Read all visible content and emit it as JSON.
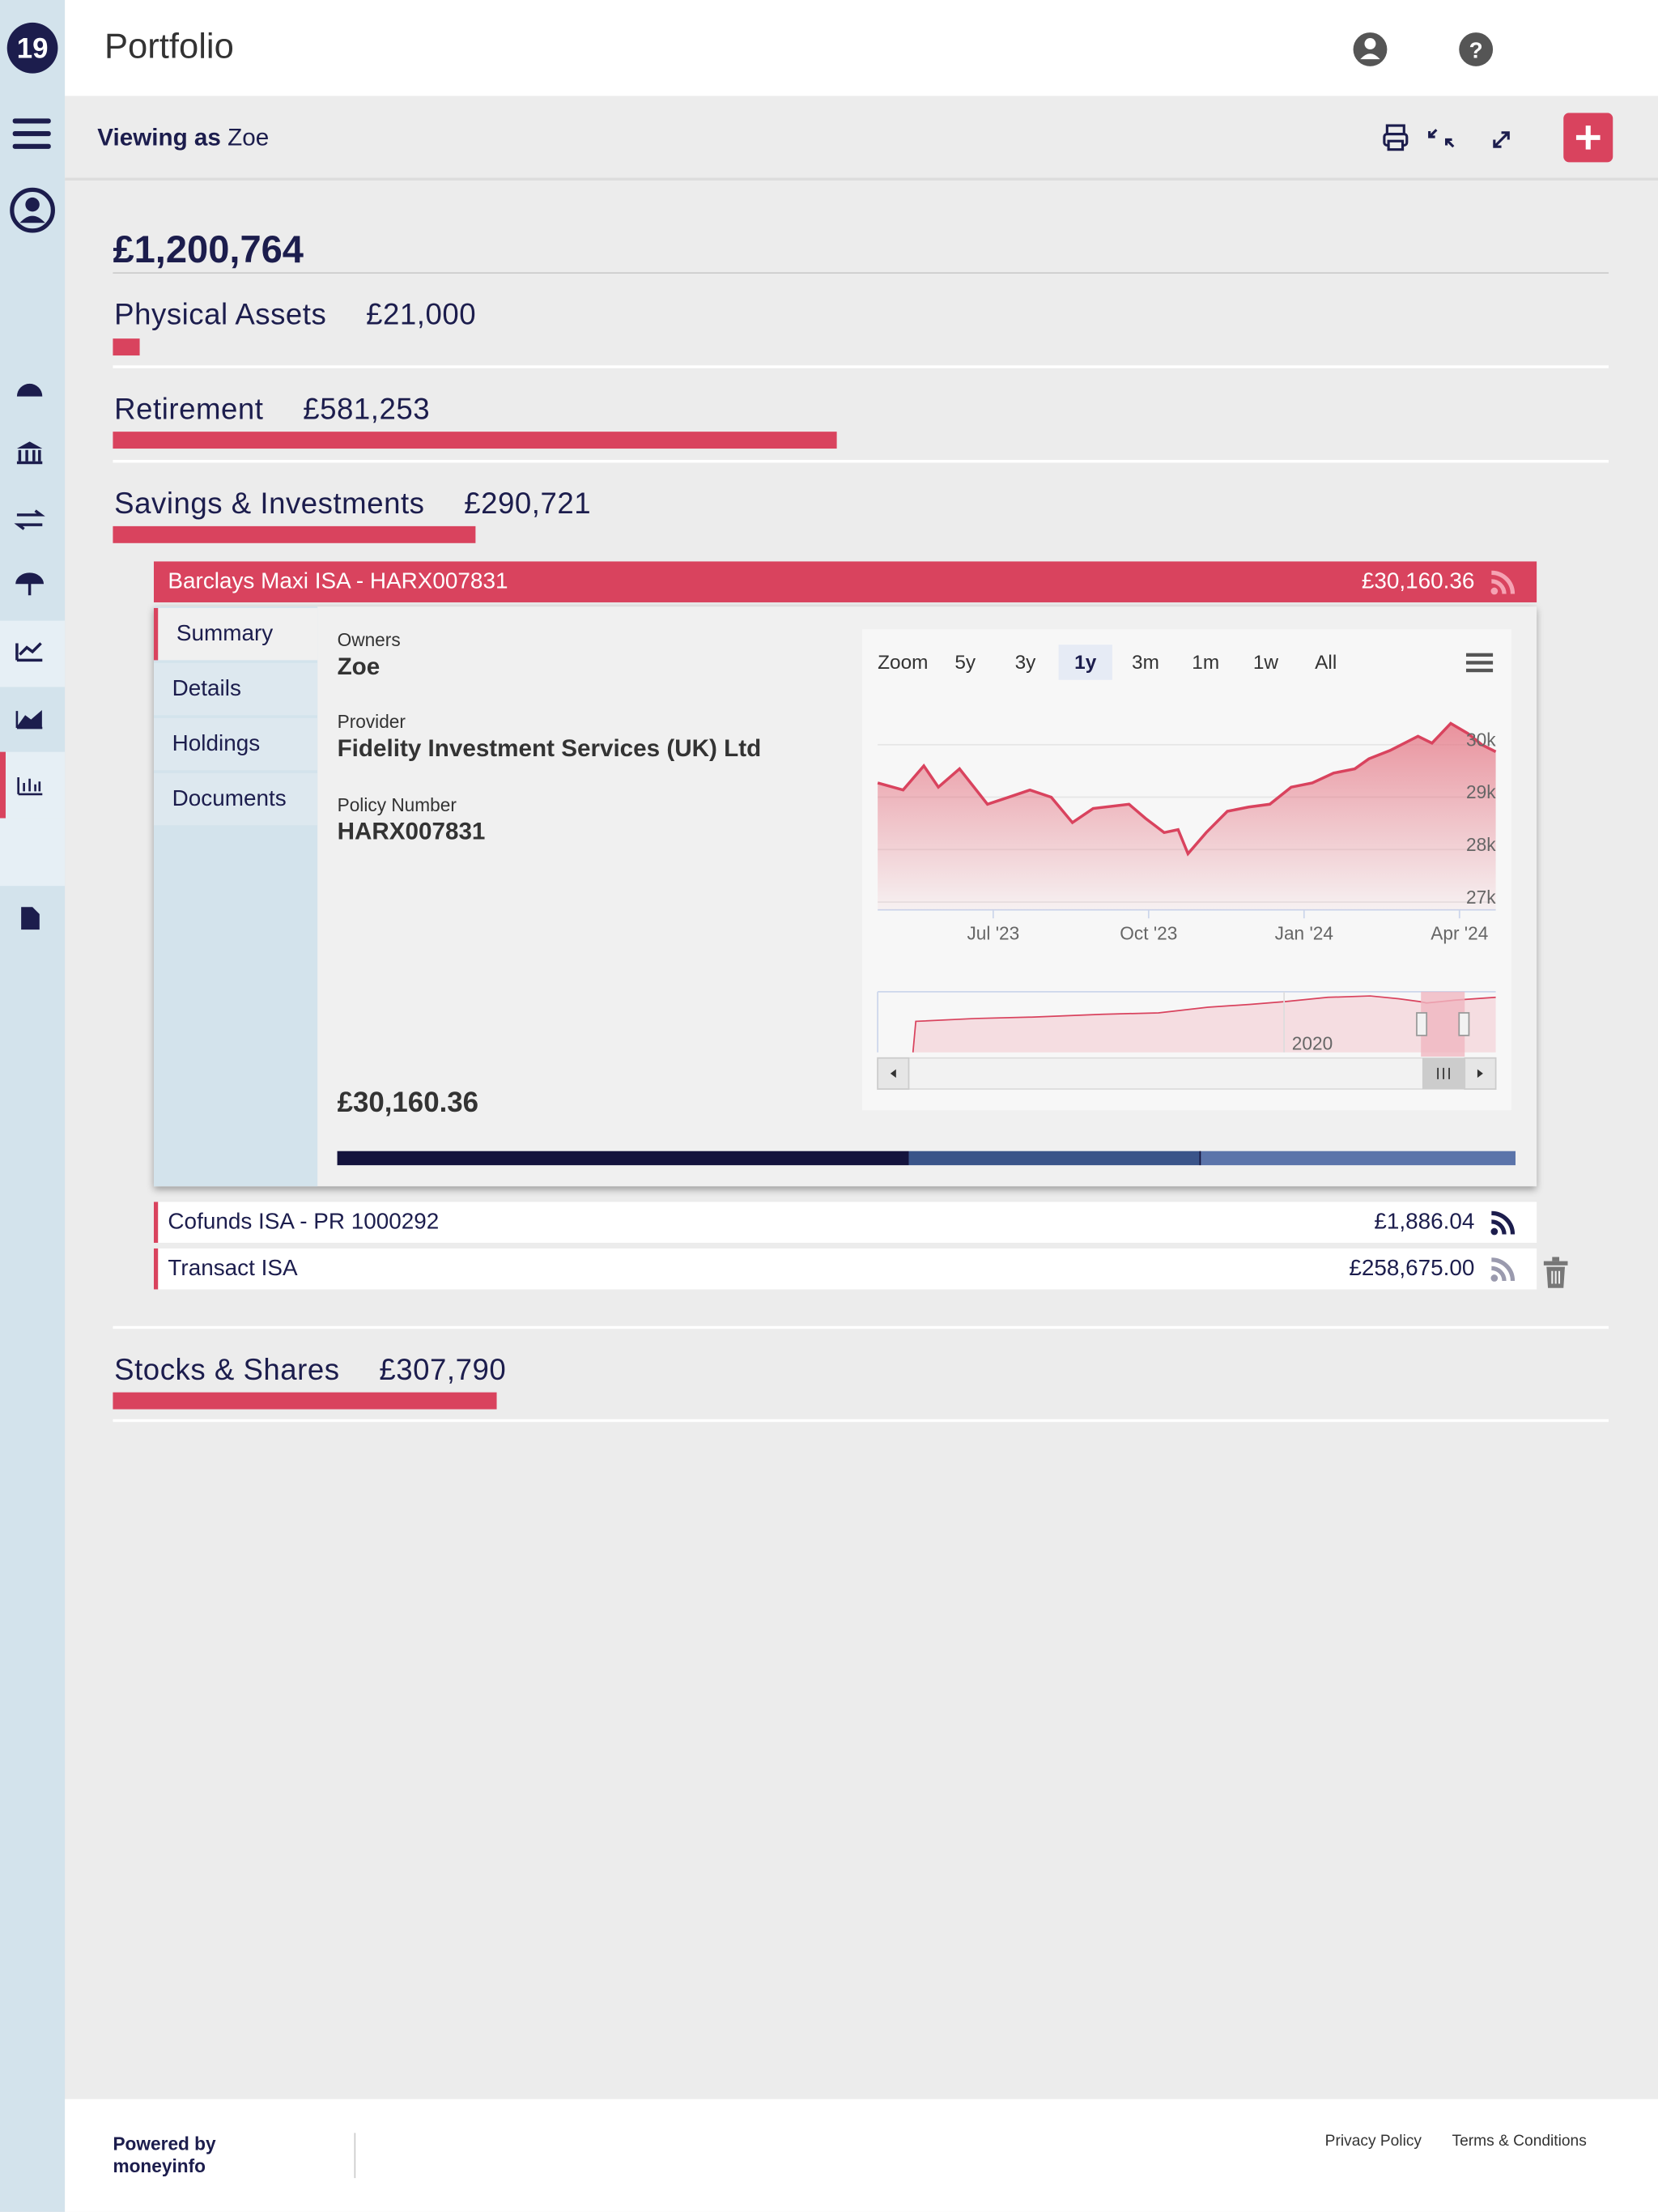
{
  "header": {
    "title": "Portfolio"
  },
  "subheader": {
    "viewing_label": "Viewing as",
    "viewing_name": "Zoe"
  },
  "total": {
    "value": 1200764,
    "value_label": "£1,200,764"
  },
  "categories": [
    {
      "name": "Physical Assets",
      "value": 21000,
      "value_label": "£21,000"
    },
    {
      "name": "Retirement",
      "value": 581253,
      "value_label": "£581,253"
    },
    {
      "name": "Savings & Investments",
      "value": 290721,
      "value_label": "£290,721"
    },
    {
      "name": "Stocks & Shares",
      "value": 307790,
      "value_label": "£307,790"
    }
  ],
  "expanded_account": {
    "name": "Barclays Maxi ISA - HARX007831",
    "value": "£30,160.36",
    "tabs": [
      "Summary",
      "Details",
      "Holdings",
      "Documents"
    ],
    "fields": [
      {
        "label": "Owners",
        "value": "Zoe"
      },
      {
        "label": "Provider",
        "value": "Fidelity Investment Services (UK) Ltd"
      },
      {
        "label": "Policy Number",
        "value": "HARX007831"
      }
    ],
    "balance": "£30,160.36"
  },
  "accounts": [
    {
      "name": "Cofunds ISA - PR 1000292",
      "value": "£1,886.04"
    },
    {
      "name": "Transact ISA",
      "value": "£258,675.00"
    }
  ],
  "chart_data": {
    "type": "area",
    "color": "#d9435e",
    "zoom_label": "Zoom",
    "zoom_options": [
      "5y",
      "3y",
      "1y",
      "3m",
      "1m",
      "1w",
      "All"
    ],
    "zoom_selected": "1y",
    "navigator_label": "2020",
    "x": [
      3.77,
      4.26,
      4.66,
      4.94,
      5.35,
      5.89,
      6.3,
      6.71,
      7.12,
      7.53,
      7.93,
      8.62,
      8.94,
      9.3,
      9.57,
      9.76,
      10.11,
      10.52,
      10.93,
      11.34,
      11.75,
      12.16,
      12.57,
      12.98,
      13.25,
      13.66,
      14.2,
      14.47,
      14.83,
      15.16,
      15.43,
      15.7
    ],
    "values": [
      29270,
      29135,
      29595,
      29190,
      29540,
      28865,
      29000,
      29135,
      29000,
      28515,
      28785,
      28865,
      28595,
      28325,
      28380,
      27920,
      28325,
      28730,
      28810,
      28865,
      29190,
      29270,
      29460,
      29540,
      29730,
      29890,
      30160,
      30030,
      30405,
      30215,
      30000,
      29865
    ],
    "xlim": [
      3.77,
      15.7
    ],
    "ylim": [
      26850,
      30750
    ],
    "xticks": [
      {
        "value": 6,
        "label": "Jul '23"
      },
      {
        "value": 9,
        "label": "Oct '23"
      },
      {
        "value": 12,
        "label": "Jan '24"
      },
      {
        "value": 15,
        "label": "Apr '24"
      }
    ],
    "yticks": [
      {
        "value": 27000,
        "label": "27k"
      },
      {
        "value": 28000,
        "label": "28k"
      },
      {
        "value": 29000,
        "label": "29k"
      },
      {
        "value": 30000,
        "label": "30k"
      }
    ],
    "grid": true
  },
  "footer": {
    "powered_by": "Powered by",
    "brand": "moneyinfo",
    "links": [
      "Privacy Policy",
      "Terms & Conditions"
    ]
  }
}
